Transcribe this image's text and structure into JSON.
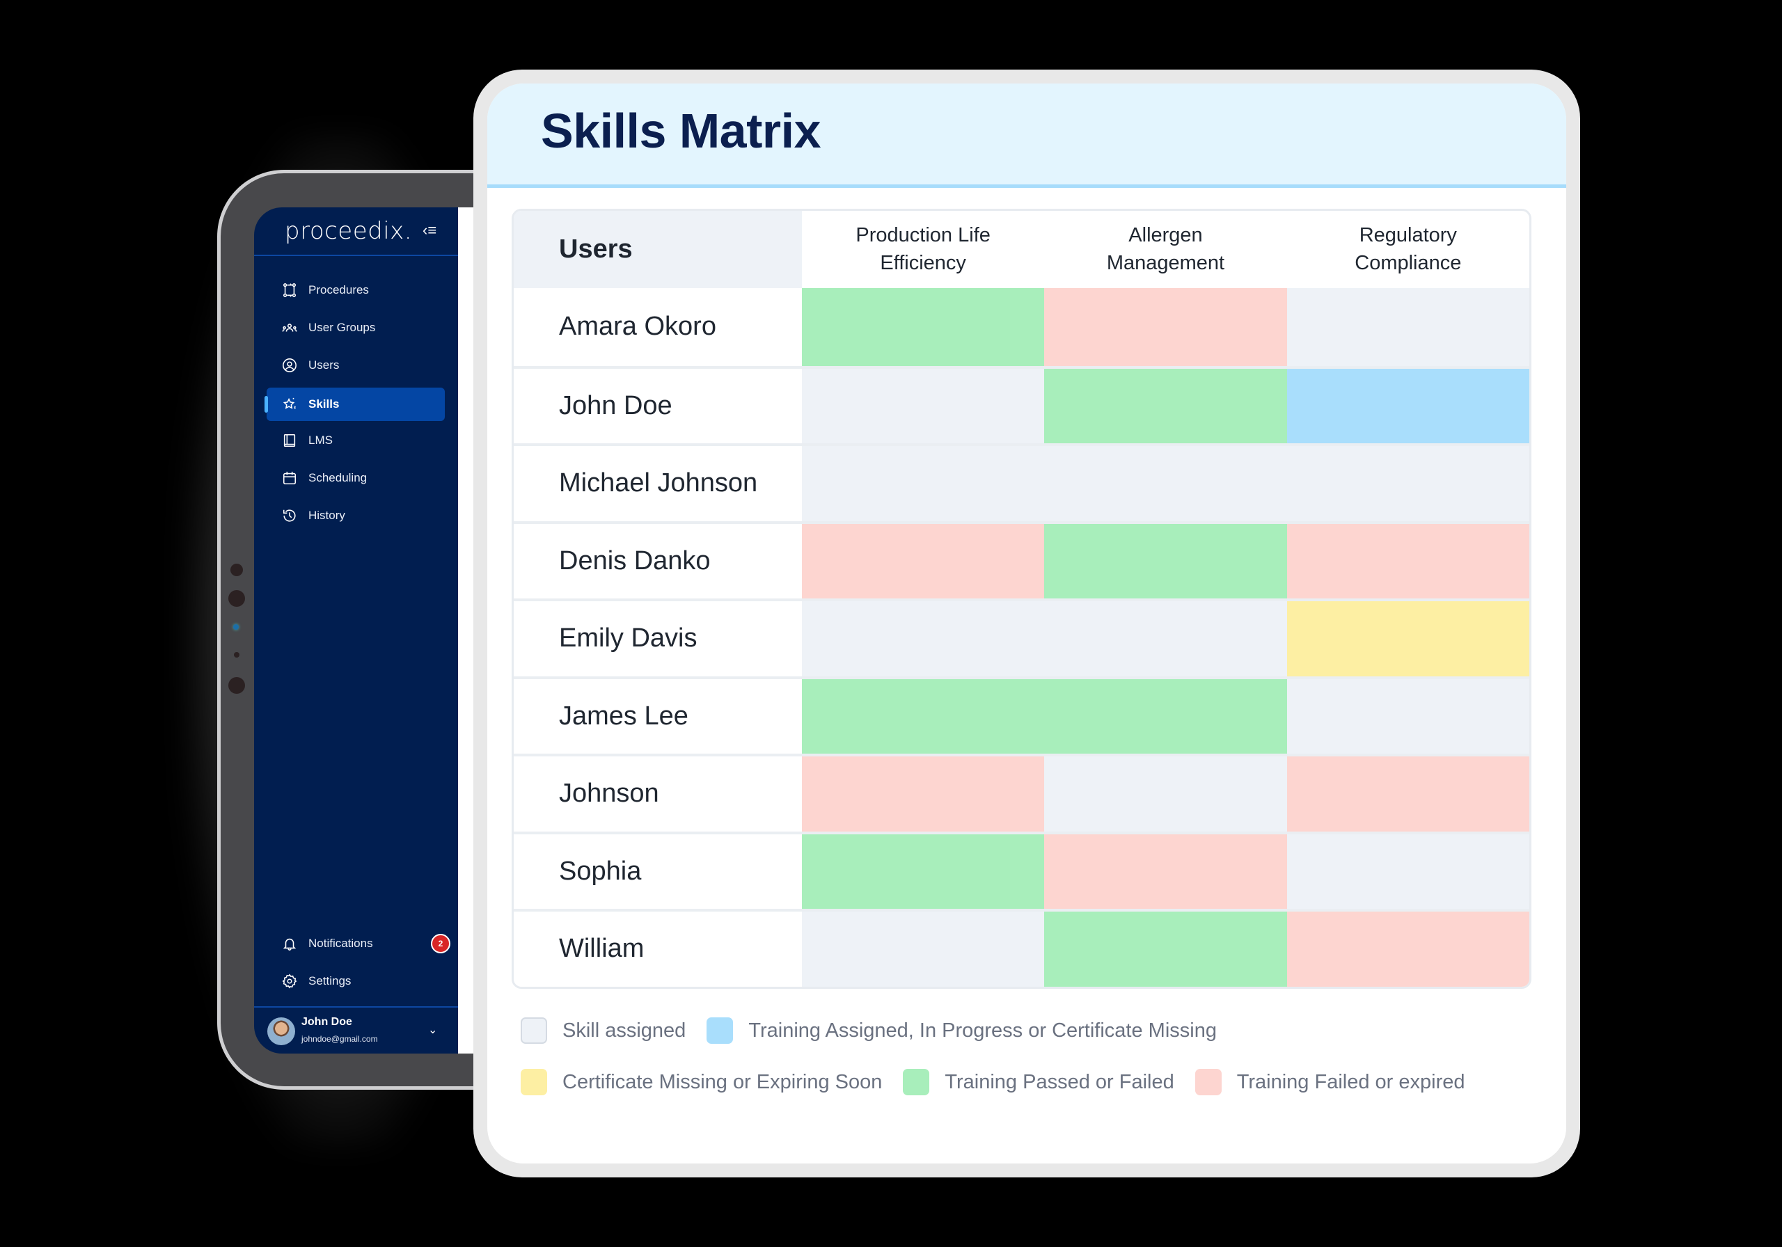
{
  "sidebar": {
    "logo": "proceedix.",
    "collapse_icon": "collapse-menu-icon",
    "nav": [
      {
        "label": "Procedures",
        "icon": "procedures-icon",
        "active": false
      },
      {
        "label": "User Groups",
        "icon": "user-groups-icon",
        "active": false
      },
      {
        "label": "Users",
        "icon": "user-circle-icon",
        "active": false
      },
      {
        "label": "Skills",
        "icon": "star-icon",
        "active": true
      },
      {
        "label": "LMS",
        "icon": "book-icon",
        "active": false
      },
      {
        "label": "Scheduling",
        "icon": "calendar-icon",
        "active": false
      },
      {
        "label": "History",
        "icon": "history-icon",
        "active": false
      }
    ],
    "bottom": [
      {
        "label": "Notifications",
        "icon": "bell-icon",
        "badge": "2"
      },
      {
        "label": "Settings",
        "icon": "gear-icon"
      }
    ],
    "user": {
      "name": "John Doe",
      "email": "johndoe@gmail.com"
    }
  },
  "card": {
    "title": "Skills Matrix",
    "colors": {
      "header_bg": "#e3f5fe",
      "title": "#0b1f4f"
    }
  },
  "matrix": {
    "users_header": "Users",
    "skills": [
      "Production Life\nEfficiency",
      "Allergen\nManagement",
      "Regulatory\nCompliance"
    ],
    "rows": [
      {
        "name": "Amara Okoro",
        "cells": [
          "passed",
          "failed",
          "skill"
        ]
      },
      {
        "name": "John Doe",
        "cells": [
          "skill",
          "passed",
          "progress"
        ]
      },
      {
        "name": "Michael Johnson",
        "cells": [
          "skill",
          "skill",
          "skill"
        ]
      },
      {
        "name": "Denis Danko",
        "cells": [
          "failed",
          "passed",
          "failed"
        ]
      },
      {
        "name": "Emily Davis",
        "cells": [
          "skill",
          "skill",
          "expiring"
        ]
      },
      {
        "name": "James Lee",
        "cells": [
          "passed",
          "passed",
          "skill"
        ]
      },
      {
        "name": "Johnson",
        "cells": [
          "failed",
          "skill",
          "failed"
        ]
      },
      {
        "name": "Sophia",
        "cells": [
          "passed",
          "failed",
          "skill"
        ]
      },
      {
        "name": "William",
        "cells": [
          "skill",
          "passed",
          "failed"
        ]
      }
    ]
  },
  "legend": [
    {
      "key": "skill",
      "label": "Skill assigned",
      "color": "#eef2f7"
    },
    {
      "key": "progress",
      "label": "Training Assigned, In Progress or Certificate Missing",
      "color": "#a9defc"
    },
    {
      "key": "expiring",
      "label": "Certificate Missing or Expiring Soon",
      "color": "#fdefa3"
    },
    {
      "key": "passed",
      "label": "Training Passed or Failed",
      "color": "#a8eebb"
    },
    {
      "key": "failed",
      "label": "Training Failed or expired",
      "color": "#fdd5d0"
    }
  ]
}
